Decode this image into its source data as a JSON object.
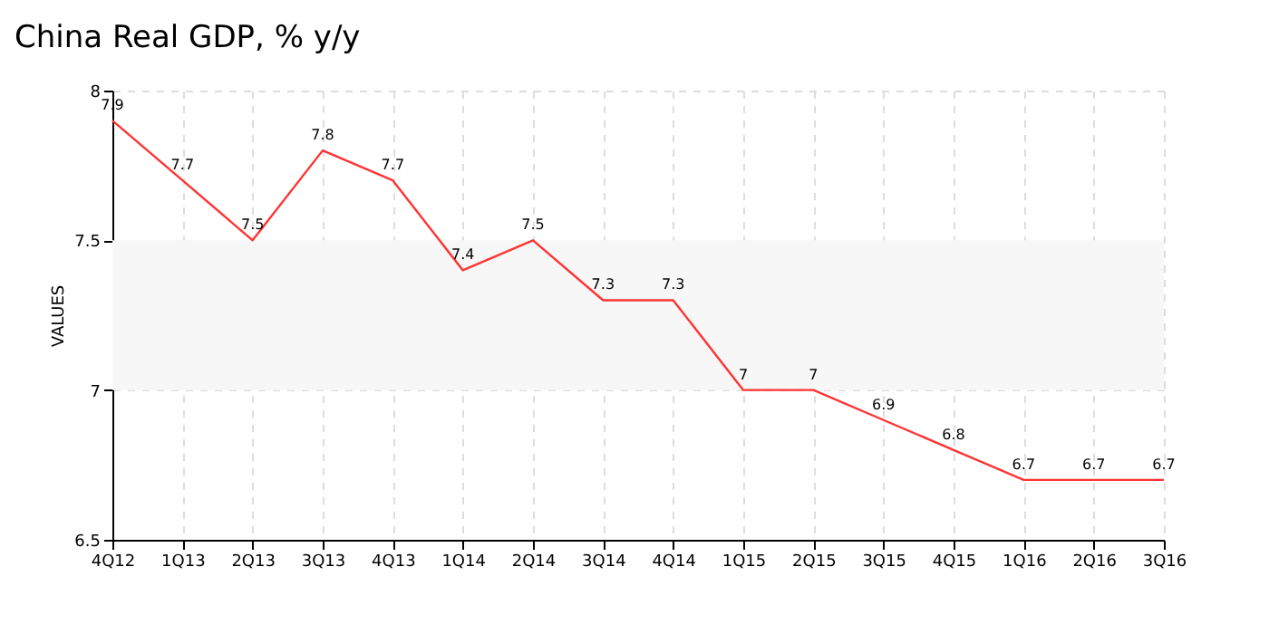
{
  "chart_data": {
    "type": "line",
    "title": "China Real GDP, % y/y",
    "ylabel": "VALUES",
    "categories": [
      "4Q12",
      "1Q13",
      "2Q13",
      "3Q13",
      "4Q13",
      "1Q14",
      "2Q14",
      "3Q14",
      "4Q14",
      "1Q15",
      "2Q15",
      "3Q15",
      "4Q15",
      "1Q16",
      "2Q16",
      "3Q16"
    ],
    "series": [
      {
        "color": "#ff3333",
        "values": [
          7.9,
          7.7,
          7.5,
          7.8,
          7.7,
          7.4,
          7.5,
          7.3,
          7.3,
          7,
          7,
          6.9,
          6.8,
          6.7,
          6.7,
          6.7
        ]
      }
    ],
    "ylim": [
      6.5,
      8
    ],
    "yticks": [
      6.5,
      7,
      7.5,
      8
    ],
    "bands": [
      {
        "axis": "y",
        "from": 7,
        "to": 7.5,
        "color": "#f7f7f7"
      }
    ],
    "data_labels": true,
    "grid": true,
    "marker": "none",
    "line_style": "solid"
  }
}
